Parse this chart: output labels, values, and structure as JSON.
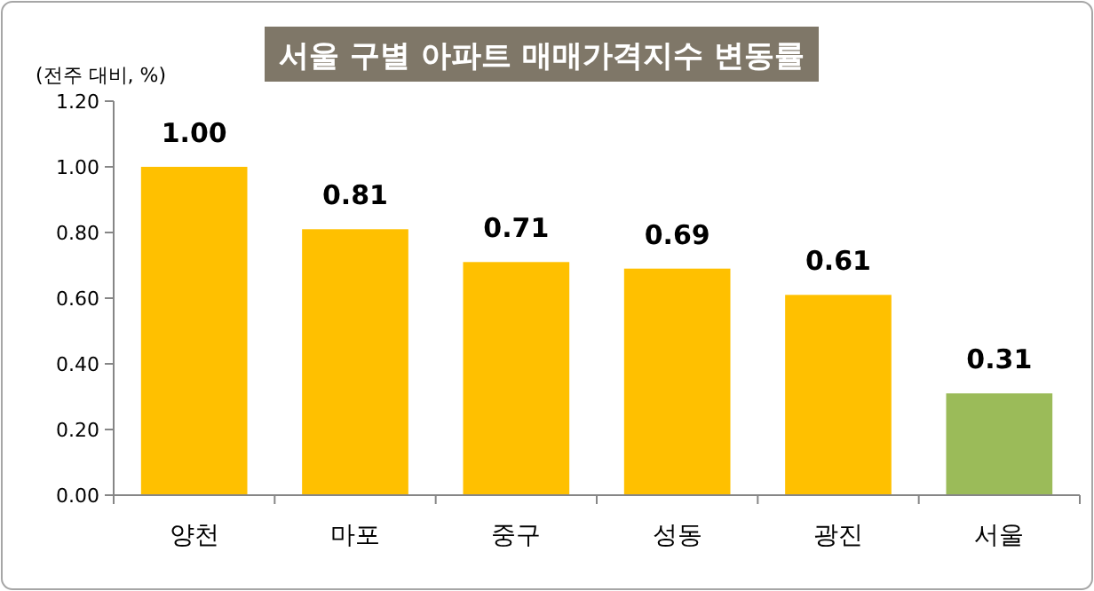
{
  "chart_data": {
    "type": "bar",
    "title": "서울 구별 아파트 매매가격지수 변동률",
    "ylabel": "(전주 대비, %)",
    "categories": [
      "양천",
      "마포",
      "중구",
      "성동",
      "광진",
      "서울"
    ],
    "values": [
      1.0,
      0.81,
      0.71,
      0.69,
      0.61,
      0.31
    ],
    "colors": [
      "#ffc000",
      "#ffc000",
      "#ffc000",
      "#ffc000",
      "#ffc000",
      "#9bbb59"
    ],
    "value_labels": [
      "1.00",
      "0.81",
      "0.71",
      "0.69",
      "0.61",
      "0.31"
    ],
    "ylim": [
      0,
      1.2
    ],
    "yticks": [
      {
        "value": 0,
        "label": "0.00"
      },
      {
        "value": 0.2,
        "label": "0.20"
      },
      {
        "value": 0.4,
        "label": "0.40"
      },
      {
        "value": 0.6,
        "label": "0.60"
      },
      {
        "value": 0.8,
        "label": "0.80"
      },
      {
        "value": 1.0,
        "label": "1.00"
      },
      {
        "value": 1.2,
        "label": "1.20"
      }
    ],
    "grid": false
  }
}
